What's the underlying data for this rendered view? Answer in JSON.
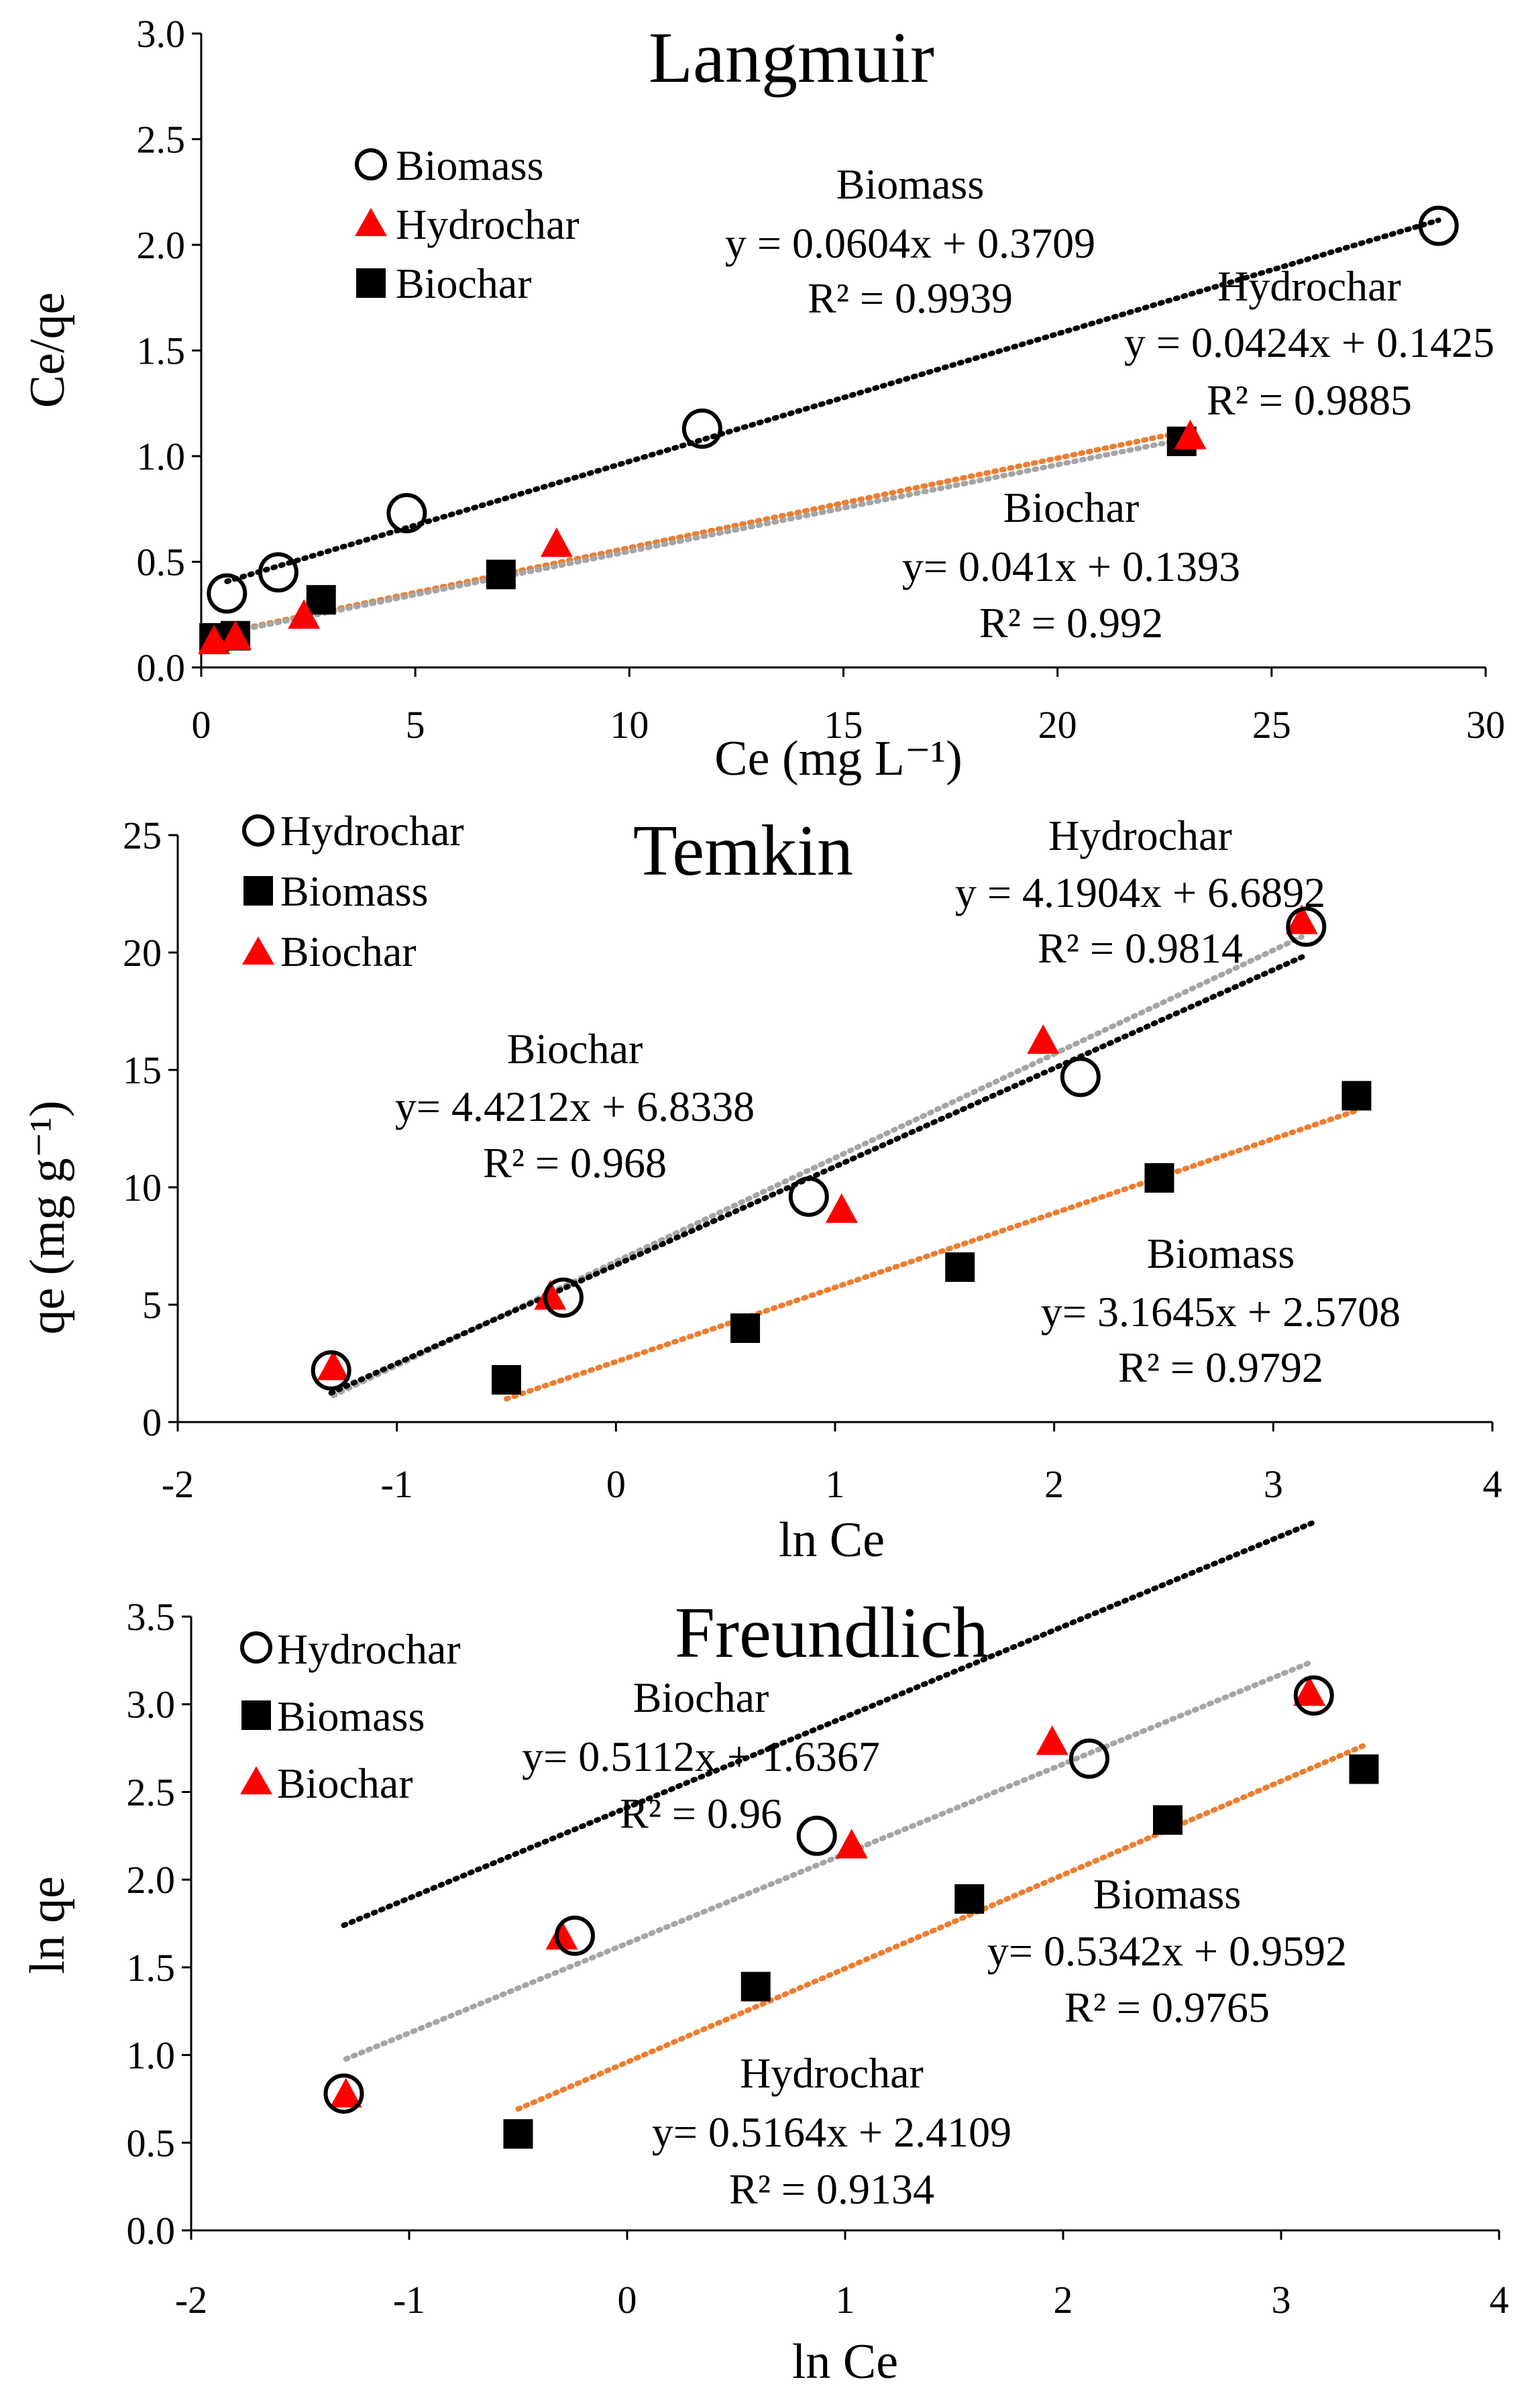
{
  "chart_data": [
    {
      "type": "scatter",
      "title": "Langmuir",
      "xlabel": "Ce (mg L⁻¹)",
      "ylabel": "Ce/qe",
      "xlim": [
        0,
        30
      ],
      "ylim": [
        0,
        3.0
      ],
      "xticks": [
        "0",
        "5",
        "10",
        "15",
        "20",
        "25",
        "30"
      ],
      "yticks": [
        "0.0",
        "0.5",
        "1.0",
        "1.5",
        "2.0",
        "2.5",
        "3.0"
      ],
      "legend": [
        "Biomass",
        "Hydrochar",
        "Biochar"
      ],
      "series": [
        {
          "name": "Biomass",
          "marker": "open-circle",
          "color": "#000000",
          "points": [
            [
              0.6,
              0.35
            ],
            [
              1.8,
              0.45
            ],
            [
              4.8,
              0.73
            ],
            [
              11.7,
              1.13
            ],
            [
              28.9,
              2.09
            ]
          ],
          "trend": {
            "slope": 0.0604,
            "intercept": 0.3709,
            "from": 0.6,
            "to": 28.9,
            "color": "#000000"
          }
        },
        {
          "name": "Hydrochar",
          "marker": "triangle",
          "color": "#ff0000",
          "points": [
            [
              0.3,
              0.12
            ],
            [
              0.8,
              0.14
            ],
            [
              2.4,
              0.24
            ],
            [
              8.3,
              0.58
            ],
            [
              23.1,
              1.09
            ]
          ],
          "trend": {
            "slope": 0.0424,
            "intercept": 0.1425,
            "from": 0.3,
            "to": 23.1,
            "color": "#ed7d31"
          }
        },
        {
          "name": "Biochar",
          "marker": "square",
          "color": "#000000",
          "points": [
            [
              0.3,
              0.14
            ],
            [
              0.8,
              0.15
            ],
            [
              2.8,
              0.32
            ],
            [
              7.0,
              0.44
            ],
            [
              22.9,
              1.07
            ]
          ],
          "trend": {
            "slope": 0.041,
            "intercept": 0.1393,
            "from": 0.3,
            "to": 22.9,
            "color": "#a5a5a5"
          }
        }
      ],
      "annotations": [
        {
          "name": "Biomass",
          "eq": "y = 0.0604x + 0.3709",
          "r2": "R² = 0.9939"
        },
        {
          "name": "Hydrochar",
          "eq": "y = 0.0424x + 0.1425",
          "r2": "R² = 0.9885"
        },
        {
          "name": "Biochar",
          "eq": "y= 0.041x + 0.1393",
          "r2": "R² = 0.992"
        }
      ]
    },
    {
      "type": "scatter",
      "title": "Temkin",
      "xlabel": "ln Ce",
      "ylabel": "qe (mg g⁻¹)",
      "xlim": [
        -2,
        4
      ],
      "ylim": [
        0,
        25
      ],
      "xticks": [
        "-2",
        "-1",
        "0",
        "1",
        "2",
        "3",
        "4"
      ],
      "yticks": [
        "0",
        "5",
        "10",
        "15",
        "20",
        "25"
      ],
      "legend": [
        "Hydrochar",
        "Biomass",
        "Biochar"
      ],
      "series": [
        {
          "name": "Hydrochar",
          "marker": "open-circle",
          "color": "#000000",
          "points": [
            [
              -1.3,
              2.2
            ],
            [
              -0.24,
              5.3
            ],
            [
              0.88,
              9.6
            ],
            [
              2.12,
              14.7
            ],
            [
              3.15,
              21.1
            ]
          ],
          "trend": {
            "slope": 4.1904,
            "intercept": 6.6892,
            "from": -1.3,
            "to": 3.15,
            "color": "#000000"
          }
        },
        {
          "name": "Biomass",
          "marker": "square",
          "color": "#000000",
          "points": [
            [
              -0.5,
              1.8
            ],
            [
              0.59,
              4.0
            ],
            [
              1.57,
              6.6
            ],
            [
              2.48,
              10.4
            ],
            [
              3.38,
              13.9
            ]
          ],
          "trend": {
            "slope": 3.1645,
            "intercept": 2.5708,
            "from": -0.5,
            "to": 3.38,
            "color": "#ed7d31"
          }
        },
        {
          "name": "Biochar",
          "marker": "triangle",
          "color": "#ff0000",
          "points": [
            [
              -1.29,
              2.3
            ],
            [
              -0.3,
              5.3
            ],
            [
              1.03,
              9.0
            ],
            [
              1.95,
              16.2
            ],
            [
              3.13,
              21.3
            ]
          ],
          "trend": {
            "slope": 4.4212,
            "intercept": 6.8338,
            "from": -1.29,
            "to": 3.13,
            "color": "#a5a5a5"
          }
        }
      ],
      "annotations": [
        {
          "name": "Hydrochar",
          "eq": "y = 4.1904x + 6.6892",
          "r2": "R² = 0.9814"
        },
        {
          "name": "Biochar",
          "eq": "y= 4.4212x + 6.8338",
          "r2": "R² = 0.968"
        },
        {
          "name": "Biomass",
          "eq": "y= 3.1645x + 2.5708",
          "r2": "R² = 0.9792"
        }
      ]
    },
    {
      "type": "scatter",
      "title": "Freundlich",
      "xlabel": "ln Ce",
      "ylabel": "ln qe",
      "xlim": [
        -2,
        4
      ],
      "ylim": [
        0,
        3.5
      ],
      "xticks": [
        "-2",
        "-1",
        "0",
        "1",
        "2",
        "3",
        "4"
      ],
      "yticks": [
        "0.0",
        "0.5",
        "1.0",
        "1.5",
        "2.0",
        "2.5",
        "3.0",
        "3.5"
      ],
      "legend": [
        "Hydrochar",
        "Biomass",
        "Biochar"
      ],
      "series": [
        {
          "name": "Hydrochar",
          "marker": "open-circle",
          "color": "#000000",
          "points": [
            [
              -1.3,
              0.78
            ],
            [
              -0.24,
              1.68
            ],
            [
              0.87,
              2.25
            ],
            [
              2.12,
              2.69
            ],
            [
              3.15,
              3.05
            ]
          ],
          "trend": {
            "slope": 0.5164,
            "intercept": 2.4109,
            "from": -1.3,
            "to": 3.15,
            "color": "#000000"
          }
        },
        {
          "name": "Biomass",
          "marker": "square",
          "color": "#000000",
          "points": [
            [
              -0.5,
              0.55
            ],
            [
              0.59,
              1.39
            ],
            [
              1.57,
              1.89
            ],
            [
              2.48,
              2.34
            ],
            [
              3.38,
              2.63
            ]
          ],
          "trend": {
            "slope": 0.5342,
            "intercept": 0.9592,
            "from": -0.5,
            "to": 3.38,
            "color": "#ed7d31"
          }
        },
        {
          "name": "Biochar",
          "marker": "triangle",
          "color": "#ff0000",
          "points": [
            [
              -1.29,
              0.77
            ],
            [
              -0.3,
              1.67
            ],
            [
              1.03,
              2.19
            ],
            [
              1.95,
              2.78
            ],
            [
              3.13,
              3.06
            ]
          ],
          "trend": {
            "slope": 0.5112,
            "intercept": 1.6367,
            "from": -1.29,
            "to": 3.13,
            "color": "#a5a5a5"
          }
        }
      ],
      "annotations": [
        {
          "name": "Biochar",
          "eq": "y= 0.5112x + 1.6367",
          "r2": "R² = 0.96"
        },
        {
          "name": "Biomass",
          "eq": "y= 0.5342x + 0.9592",
          "r2": "R² = 0.9765"
        },
        {
          "name": "Hydrochar",
          "eq": "y= 0.5164x + 2.4109",
          "r2": "R² = 0.9134"
        }
      ]
    }
  ]
}
